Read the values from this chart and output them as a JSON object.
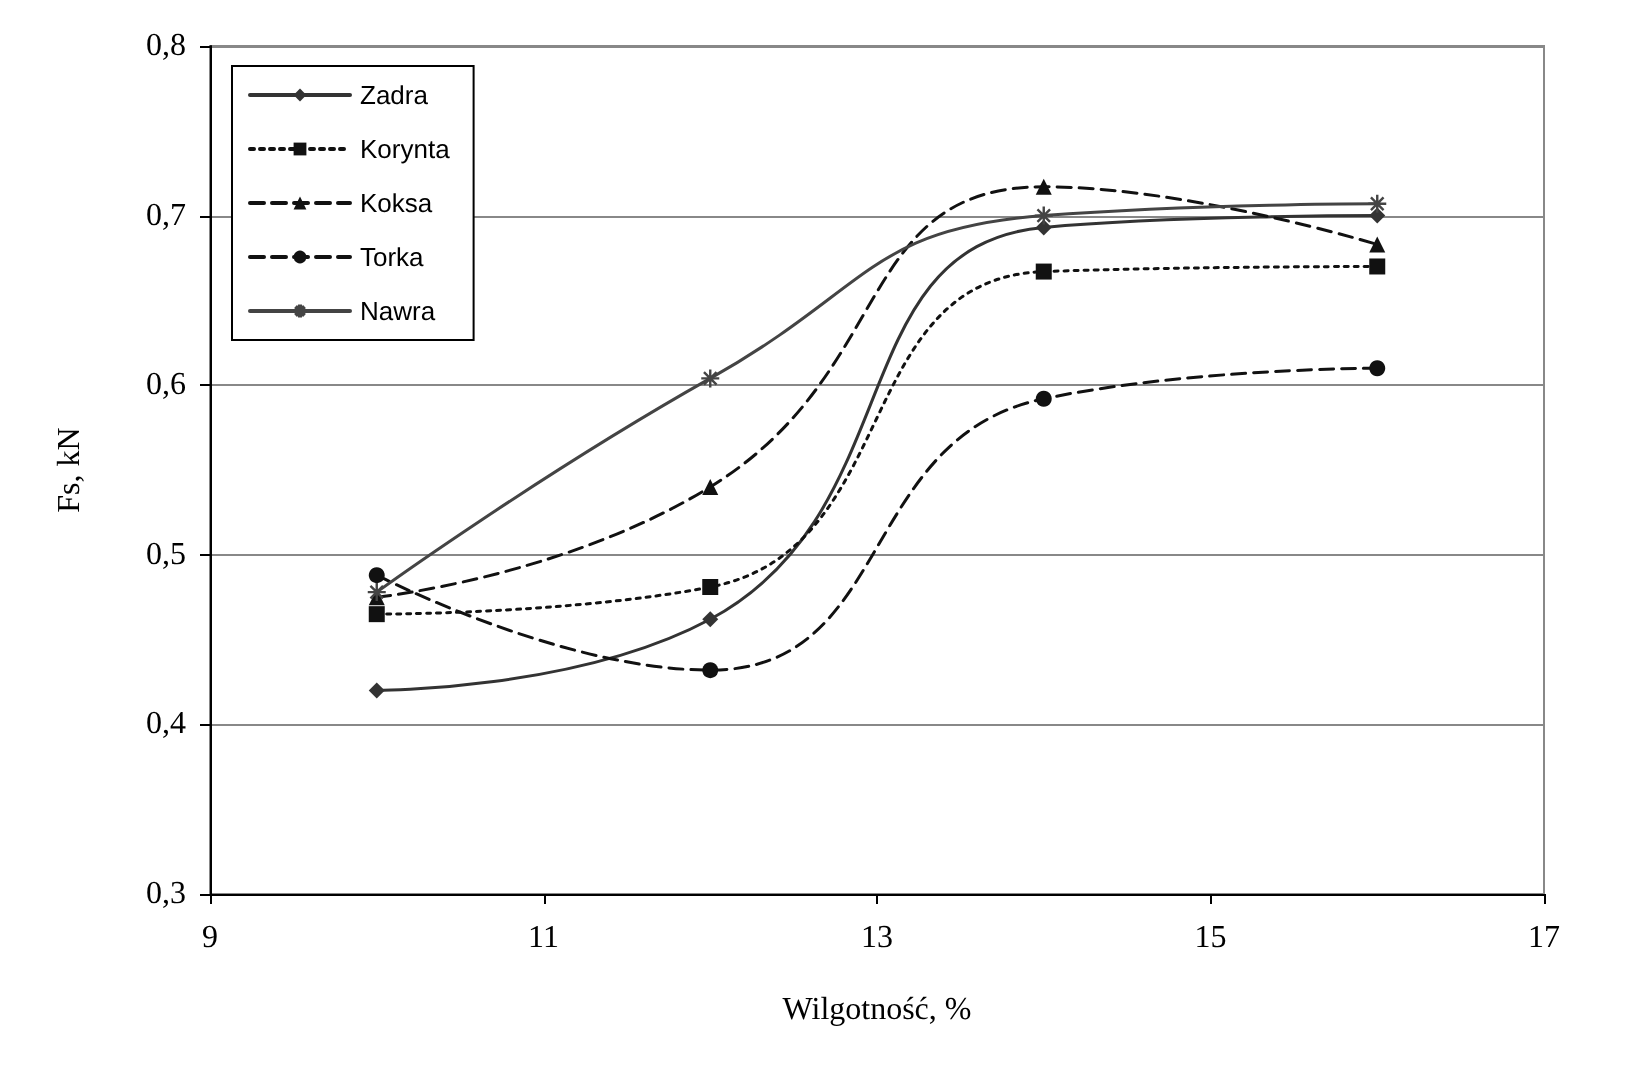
{
  "chart_data": {
    "type": "line",
    "xlabel": "Wilgotność, %",
    "ylabel": "Fs, kN",
    "x": [
      10,
      12,
      14,
      16
    ],
    "series": [
      {
        "name": "Zadra",
        "color": "#333333",
        "values": [
          0.42,
          0.462,
          0.693,
          0.7
        ],
        "marker": "diamond",
        "line_style": "solid"
      },
      {
        "name": "Korynta",
        "color": "#111111",
        "values": [
          0.465,
          0.481,
          0.667,
          0.67
        ],
        "marker": "square",
        "line_style": "dotted"
      },
      {
        "name": "Koksa",
        "color": "#111111",
        "values": [
          0.475,
          0.54,
          0.717,
          0.683
        ],
        "marker": "triangle",
        "line_style": "dashed"
      },
      {
        "name": "Torka",
        "color": "#111111",
        "values": [
          0.488,
          0.432,
          0.592,
          0.61
        ],
        "marker": "circle",
        "line_style": "dashed"
      },
      {
        "name": "Nawra",
        "color": "#444444",
        "values": [
          0.478,
          0.604,
          0.7,
          0.707
        ],
        "marker": "cross",
        "line_style": "solid"
      }
    ],
    "xlim": [
      9,
      17
    ],
    "xticks": [
      9,
      11,
      13,
      15,
      17
    ],
    "ylim": [
      0.3,
      0.8
    ],
    "yticks": [
      {
        "value": 0.3,
        "label": "0,3"
      },
      {
        "value": 0.4,
        "label": "0,4"
      },
      {
        "value": 0.5,
        "label": "0,5"
      },
      {
        "value": 0.6,
        "label": "0,6"
      },
      {
        "value": 0.7,
        "label": "0,7"
      },
      {
        "value": 0.8,
        "label": "0,8"
      }
    ],
    "grid": "y",
    "legend": "top left"
  }
}
